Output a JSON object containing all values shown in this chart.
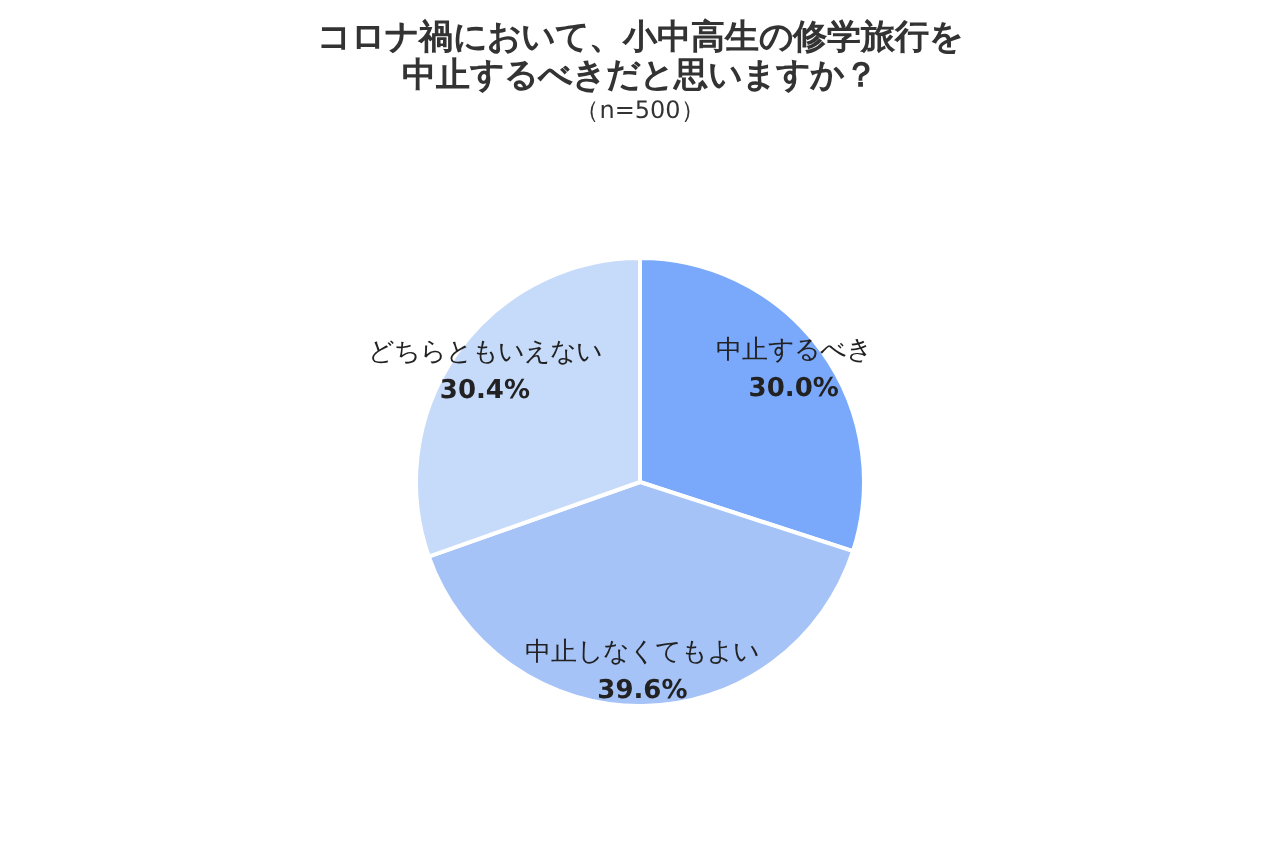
{
  "chart_data": {
    "type": "pie",
    "title": "コロナ禍において、小中高生の修学旅行を中止するべきだと思いますか？",
    "subtitle": "（n=500）",
    "categories": [
      "中止するべき",
      "中止しなくてもよい",
      "どちらともいえない"
    ],
    "values": [
      30.0,
      39.6,
      30.4
    ],
    "value_labels": [
      "30.0%",
      "39.6%",
      "30.4%"
    ],
    "colors": [
      "#7aa9fc",
      "#a5c3f7",
      "#c6daf9"
    ],
    "legend": false
  }
}
